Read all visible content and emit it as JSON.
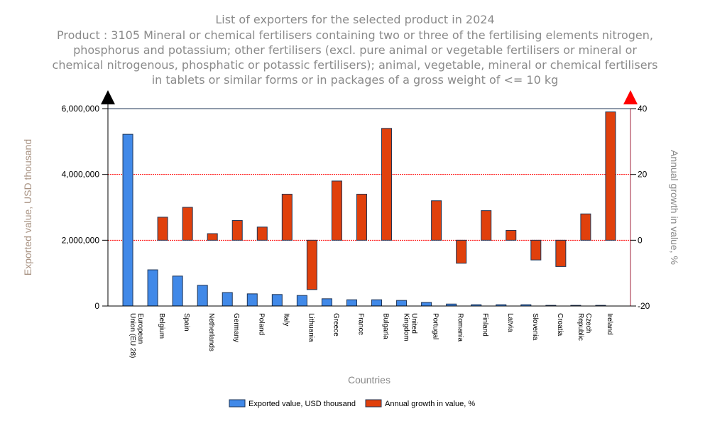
{
  "chart_data": {
    "type": "bar",
    "title": "List of exporters for the selected product in 2024",
    "subtitle": "Product : 3105 Mineral or chemical fertilisers containing two or three of the fertilising elements nitrogen, phosphorus and potassium; other fertilisers (excl. pure animal or vegetable fertilisers or mineral or chemical nitrogenous, phosphatic or potassic fertilisers); animal, vegetable, mineral or chemical fertilisers in tablets or similar forms or in packages of a gross weight of <= 10 kg",
    "xlabel": "Countries",
    "ylabel": "Exported value, USD thousand",
    "y2label": "Annual growth in value, %",
    "ylim": [
      0,
      6000000
    ],
    "y2lim": [
      -20,
      40
    ],
    "yticks": [
      "0",
      "2,000,000",
      "4,000,000",
      "6,000,000"
    ],
    "y2ticks": [
      "-20",
      "0",
      "20",
      "40"
    ],
    "grid": true,
    "legend_position": "bottom",
    "categories": [
      "European Union (EU 28)",
      "Belgium",
      "Spain",
      "Netherlands",
      "Germany",
      "Poland",
      "Italy",
      "Lithuania",
      "Greece",
      "France",
      "Bulgaria",
      "United Kingdom",
      "Portugal",
      "Romania",
      "Finland",
      "Latvia",
      "Slovenia",
      "Croatia",
      "Czech Republic",
      "Ireland"
    ],
    "series": [
      {
        "name": "Exported value, USD thousand",
        "axis": "left",
        "color": "#4189e8",
        "values": [
          5220000,
          1100000,
          910000,
          630000,
          410000,
          370000,
          350000,
          320000,
          220000,
          190000,
          190000,
          170000,
          110000,
          60000,
          40000,
          40000,
          40000,
          20000,
          20000,
          20000
        ]
      },
      {
        "name": "Annual growth in value, %",
        "axis": "right",
        "color": "#e0400c",
        "values": [
          null,
          7,
          10,
          2,
          6,
          4,
          14,
          -15,
          18,
          14,
          34,
          null,
          12,
          -7,
          9,
          3,
          -6,
          -8,
          8,
          39
        ]
      }
    ]
  }
}
